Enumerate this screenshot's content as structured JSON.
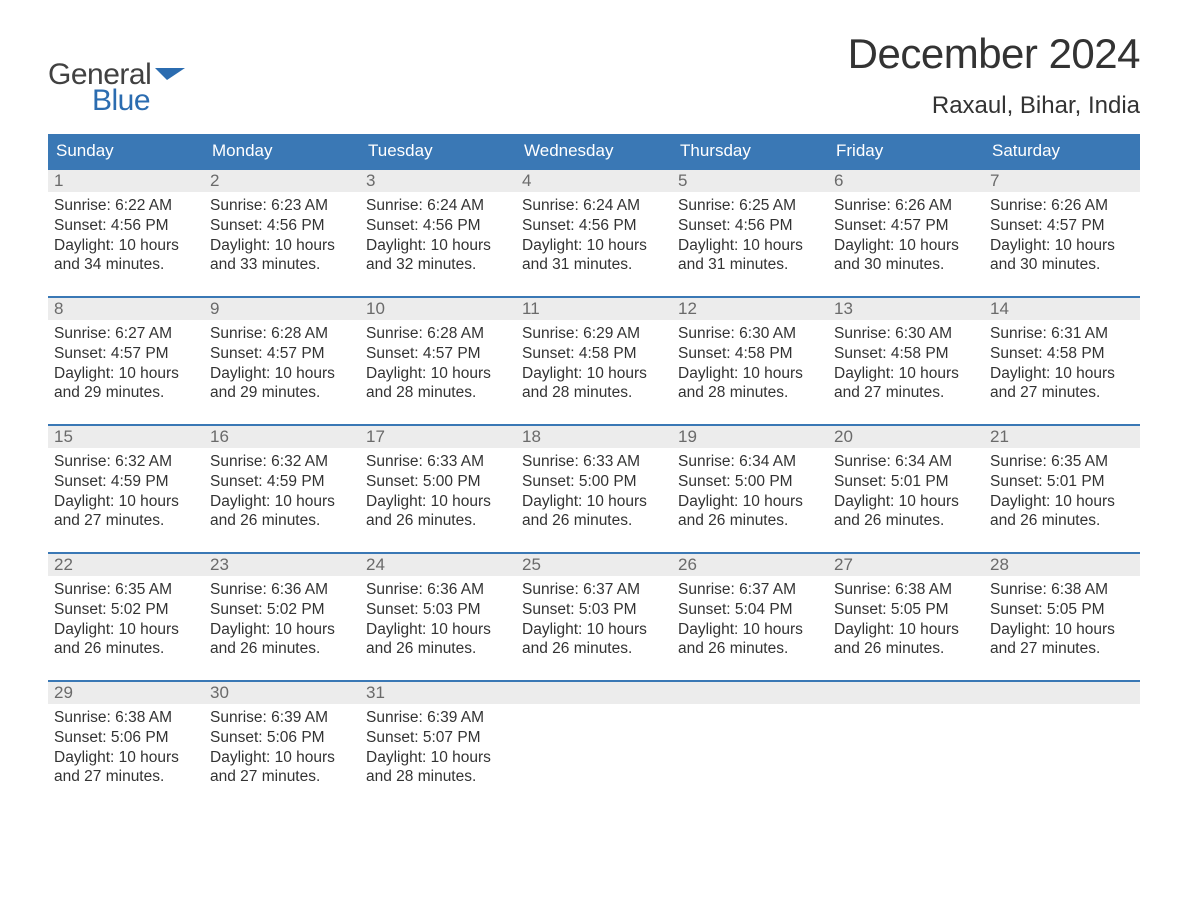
{
  "brand": {
    "line1": "General",
    "line2": "Blue",
    "icon_color": "#2b6cb0"
  },
  "title": "December 2024",
  "location": "Raxaul, Bihar, India",
  "colors": {
    "header_bg": "#3a78b5",
    "header_text": "#ffffff",
    "daynum_bg": "#ececec",
    "daynum_text": "#6a6a6a",
    "body_text": "#333333",
    "rule": "#3a78b5",
    "page_bg": "#ffffff"
  },
  "weekdays": [
    "Sunday",
    "Monday",
    "Tuesday",
    "Wednesday",
    "Thursday",
    "Friday",
    "Saturday"
  ],
  "weeks": [
    [
      {
        "n": "1",
        "sunrise": "Sunrise: 6:22 AM",
        "sunset": "Sunset: 4:56 PM",
        "daylight1": "Daylight: 10 hours",
        "daylight2": "and 34 minutes."
      },
      {
        "n": "2",
        "sunrise": "Sunrise: 6:23 AM",
        "sunset": "Sunset: 4:56 PM",
        "daylight1": "Daylight: 10 hours",
        "daylight2": "and 33 minutes."
      },
      {
        "n": "3",
        "sunrise": "Sunrise: 6:24 AM",
        "sunset": "Sunset: 4:56 PM",
        "daylight1": "Daylight: 10 hours",
        "daylight2": "and 32 minutes."
      },
      {
        "n": "4",
        "sunrise": "Sunrise: 6:24 AM",
        "sunset": "Sunset: 4:56 PM",
        "daylight1": "Daylight: 10 hours",
        "daylight2": "and 31 minutes."
      },
      {
        "n": "5",
        "sunrise": "Sunrise: 6:25 AM",
        "sunset": "Sunset: 4:56 PM",
        "daylight1": "Daylight: 10 hours",
        "daylight2": "and 31 minutes."
      },
      {
        "n": "6",
        "sunrise": "Sunrise: 6:26 AM",
        "sunset": "Sunset: 4:57 PM",
        "daylight1": "Daylight: 10 hours",
        "daylight2": "and 30 minutes."
      },
      {
        "n": "7",
        "sunrise": "Sunrise: 6:26 AM",
        "sunset": "Sunset: 4:57 PM",
        "daylight1": "Daylight: 10 hours",
        "daylight2": "and 30 minutes."
      }
    ],
    [
      {
        "n": "8",
        "sunrise": "Sunrise: 6:27 AM",
        "sunset": "Sunset: 4:57 PM",
        "daylight1": "Daylight: 10 hours",
        "daylight2": "and 29 minutes."
      },
      {
        "n": "9",
        "sunrise": "Sunrise: 6:28 AM",
        "sunset": "Sunset: 4:57 PM",
        "daylight1": "Daylight: 10 hours",
        "daylight2": "and 29 minutes."
      },
      {
        "n": "10",
        "sunrise": "Sunrise: 6:28 AM",
        "sunset": "Sunset: 4:57 PM",
        "daylight1": "Daylight: 10 hours",
        "daylight2": "and 28 minutes."
      },
      {
        "n": "11",
        "sunrise": "Sunrise: 6:29 AM",
        "sunset": "Sunset: 4:58 PM",
        "daylight1": "Daylight: 10 hours",
        "daylight2": "and 28 minutes."
      },
      {
        "n": "12",
        "sunrise": "Sunrise: 6:30 AM",
        "sunset": "Sunset: 4:58 PM",
        "daylight1": "Daylight: 10 hours",
        "daylight2": "and 28 minutes."
      },
      {
        "n": "13",
        "sunrise": "Sunrise: 6:30 AM",
        "sunset": "Sunset: 4:58 PM",
        "daylight1": "Daylight: 10 hours",
        "daylight2": "and 27 minutes."
      },
      {
        "n": "14",
        "sunrise": "Sunrise: 6:31 AM",
        "sunset": "Sunset: 4:58 PM",
        "daylight1": "Daylight: 10 hours",
        "daylight2": "and 27 minutes."
      }
    ],
    [
      {
        "n": "15",
        "sunrise": "Sunrise: 6:32 AM",
        "sunset": "Sunset: 4:59 PM",
        "daylight1": "Daylight: 10 hours",
        "daylight2": "and 27 minutes."
      },
      {
        "n": "16",
        "sunrise": "Sunrise: 6:32 AM",
        "sunset": "Sunset: 4:59 PM",
        "daylight1": "Daylight: 10 hours",
        "daylight2": "and 26 minutes."
      },
      {
        "n": "17",
        "sunrise": "Sunrise: 6:33 AM",
        "sunset": "Sunset: 5:00 PM",
        "daylight1": "Daylight: 10 hours",
        "daylight2": "and 26 minutes."
      },
      {
        "n": "18",
        "sunrise": "Sunrise: 6:33 AM",
        "sunset": "Sunset: 5:00 PM",
        "daylight1": "Daylight: 10 hours",
        "daylight2": "and 26 minutes."
      },
      {
        "n": "19",
        "sunrise": "Sunrise: 6:34 AM",
        "sunset": "Sunset: 5:00 PM",
        "daylight1": "Daylight: 10 hours",
        "daylight2": "and 26 minutes."
      },
      {
        "n": "20",
        "sunrise": "Sunrise: 6:34 AM",
        "sunset": "Sunset: 5:01 PM",
        "daylight1": "Daylight: 10 hours",
        "daylight2": "and 26 minutes."
      },
      {
        "n": "21",
        "sunrise": "Sunrise: 6:35 AM",
        "sunset": "Sunset: 5:01 PM",
        "daylight1": "Daylight: 10 hours",
        "daylight2": "and 26 minutes."
      }
    ],
    [
      {
        "n": "22",
        "sunrise": "Sunrise: 6:35 AM",
        "sunset": "Sunset: 5:02 PM",
        "daylight1": "Daylight: 10 hours",
        "daylight2": "and 26 minutes."
      },
      {
        "n": "23",
        "sunrise": "Sunrise: 6:36 AM",
        "sunset": "Sunset: 5:02 PM",
        "daylight1": "Daylight: 10 hours",
        "daylight2": "and 26 minutes."
      },
      {
        "n": "24",
        "sunrise": "Sunrise: 6:36 AM",
        "sunset": "Sunset: 5:03 PM",
        "daylight1": "Daylight: 10 hours",
        "daylight2": "and 26 minutes."
      },
      {
        "n": "25",
        "sunrise": "Sunrise: 6:37 AM",
        "sunset": "Sunset: 5:03 PM",
        "daylight1": "Daylight: 10 hours",
        "daylight2": "and 26 minutes."
      },
      {
        "n": "26",
        "sunrise": "Sunrise: 6:37 AM",
        "sunset": "Sunset: 5:04 PM",
        "daylight1": "Daylight: 10 hours",
        "daylight2": "and 26 minutes."
      },
      {
        "n": "27",
        "sunrise": "Sunrise: 6:38 AM",
        "sunset": "Sunset: 5:05 PM",
        "daylight1": "Daylight: 10 hours",
        "daylight2": "and 26 minutes."
      },
      {
        "n": "28",
        "sunrise": "Sunrise: 6:38 AM",
        "sunset": "Sunset: 5:05 PM",
        "daylight1": "Daylight: 10 hours",
        "daylight2": "and 27 minutes."
      }
    ],
    [
      {
        "n": "29",
        "sunrise": "Sunrise: 6:38 AM",
        "sunset": "Sunset: 5:06 PM",
        "daylight1": "Daylight: 10 hours",
        "daylight2": "and 27 minutes."
      },
      {
        "n": "30",
        "sunrise": "Sunrise: 6:39 AM",
        "sunset": "Sunset: 5:06 PM",
        "daylight1": "Daylight: 10 hours",
        "daylight2": "and 27 minutes."
      },
      {
        "n": "31",
        "sunrise": "Sunrise: 6:39 AM",
        "sunset": "Sunset: 5:07 PM",
        "daylight1": "Daylight: 10 hours",
        "daylight2": "and 28 minutes."
      },
      {
        "n": "",
        "empty": true
      },
      {
        "n": "",
        "empty": true
      },
      {
        "n": "",
        "empty": true
      },
      {
        "n": "",
        "empty": true
      }
    ]
  ]
}
